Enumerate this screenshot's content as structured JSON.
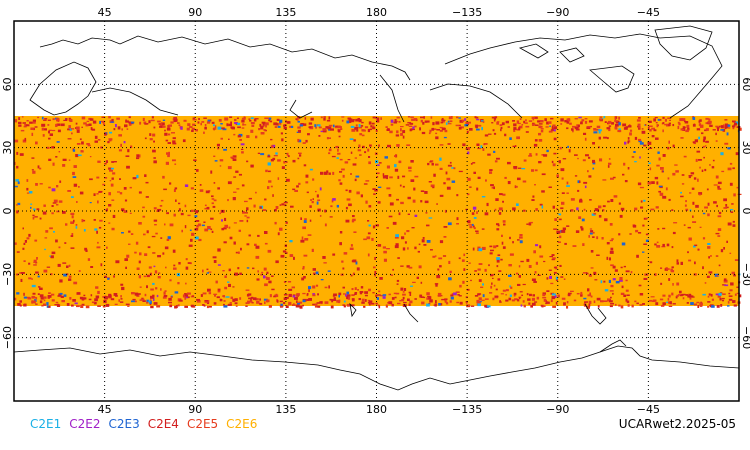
{
  "map": {
    "projection": "cylindrical-equidistant",
    "center_longitude": 180,
    "lon_range": [
      0,
      360
    ],
    "lat_range": [
      -90,
      90
    ],
    "gridlines": "dotted",
    "top_tick_labels": [
      "45",
      "90",
      "135",
      "180",
      "−135",
      "−90",
      "−45"
    ],
    "bottom_tick_labels": [
      "45",
      "90",
      "135",
      "180",
      "−135",
      "−90",
      "−45"
    ],
    "left_tick_labels": [
      "60",
      "30",
      "0",
      "−30",
      "−60"
    ],
    "right_tick_labels": [
      "60",
      "30",
      "0",
      "−30",
      "−60"
    ],
    "tick_lons": [
      45,
      90,
      135,
      180,
      225,
      270,
      315
    ],
    "tick_lats": [
      60,
      30,
      0,
      -30,
      -60
    ],
    "observation_band_lat": [
      -45,
      45
    ],
    "dominant_series": "C2E6"
  },
  "legend": {
    "items": [
      {
        "label": "C2E1",
        "color": "#1ab0e6"
      },
      {
        "label": "C2E2",
        "color": "#a020c8"
      },
      {
        "label": "C2E3",
        "color": "#1e64d2"
      },
      {
        "label": "C2E4",
        "color": "#d21e1e"
      },
      {
        "label": "C2E5",
        "color": "#e63c1e"
      },
      {
        "label": "C2E6",
        "color": "#ffb000"
      }
    ]
  },
  "footer": {
    "dataset_id": "UCARwet2.2025-05"
  }
}
